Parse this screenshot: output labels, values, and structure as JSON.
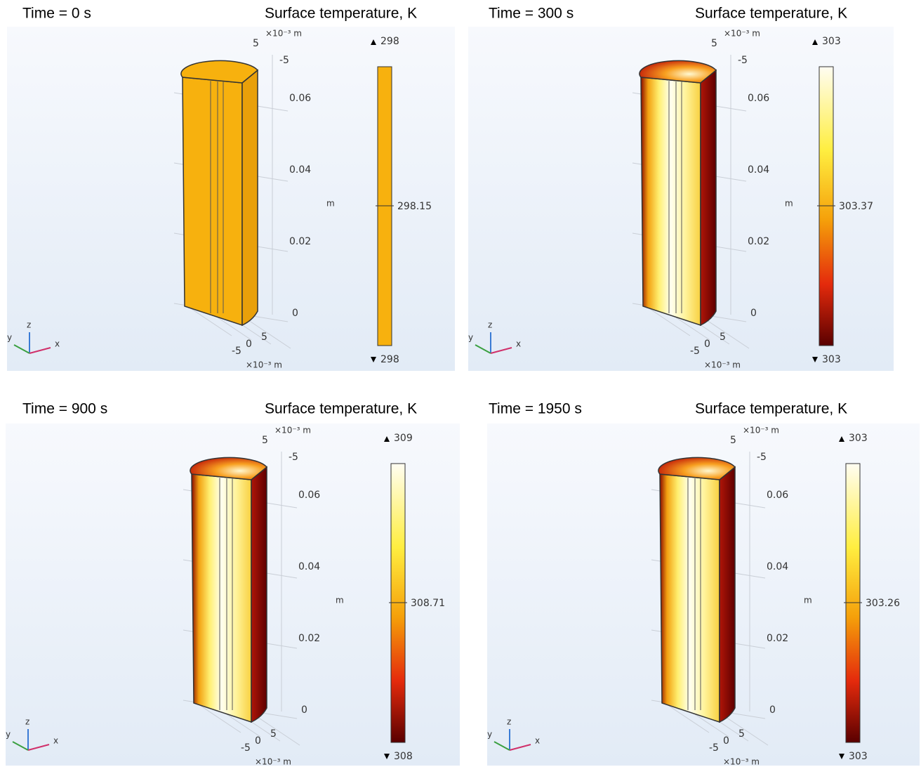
{
  "panels": [
    {
      "time": "Time = 0 s",
      "title": "Surface temperature, K",
      "max": "298",
      "mid": "298.15",
      "min": "298",
      "uniform_color": "#f7b10e",
      "top_scale": "×10⁻³ m",
      "top_ticks": [
        "5",
        "-5"
      ],
      "z_ticks": [
        "0.06",
        "0.04",
        "0.02",
        "0"
      ],
      "z_unit": "m",
      "bottom_ticks": [
        "-5",
        "0",
        "5"
      ],
      "bottom_scale": "×10⁻³ m",
      "triad": [
        "y",
        "z",
        "x"
      ]
    },
    {
      "time": "Time = 300 s",
      "title": "Surface temperature, K",
      "max": "303",
      "mid": "303.37",
      "min": "303",
      "top_scale": "×10⁻³ m",
      "top_ticks": [
        "5",
        "-5"
      ],
      "z_ticks": [
        "0.06",
        "0.04",
        "0.02",
        "0"
      ],
      "z_unit": "m",
      "bottom_ticks": [
        "-5",
        "0",
        "5"
      ],
      "bottom_scale": "×10⁻³ m",
      "triad": [
        "y",
        "z",
        "x"
      ]
    },
    {
      "time": "Time = 900 s",
      "title": "Surface temperature, K",
      "max": "309",
      "mid": "308.71",
      "min": "308",
      "top_scale": "×10⁻³ m",
      "top_ticks": [
        "5",
        "-5"
      ],
      "z_ticks": [
        "0.06",
        "0.04",
        "0.02",
        "0"
      ],
      "z_unit": "m",
      "bottom_ticks": [
        "-5",
        "0",
        "5"
      ],
      "bottom_scale": "×10⁻³ m",
      "triad": [
        "y",
        "z",
        "x"
      ]
    },
    {
      "time": "Time = 1950 s",
      "title": "Surface temperature, K",
      "max": "303",
      "mid": "303.26",
      "min": "303",
      "top_scale": "×10⁻³ m",
      "top_ticks": [
        "5",
        "-5"
      ],
      "z_ticks": [
        "0.06",
        "0.04",
        "0.02",
        "0"
      ],
      "z_unit": "m",
      "bottom_ticks": [
        "-5",
        "0",
        "5"
      ],
      "bottom_scale": "×10⁻³ m",
      "triad": [
        "y",
        "z",
        "x"
      ]
    }
  ]
}
